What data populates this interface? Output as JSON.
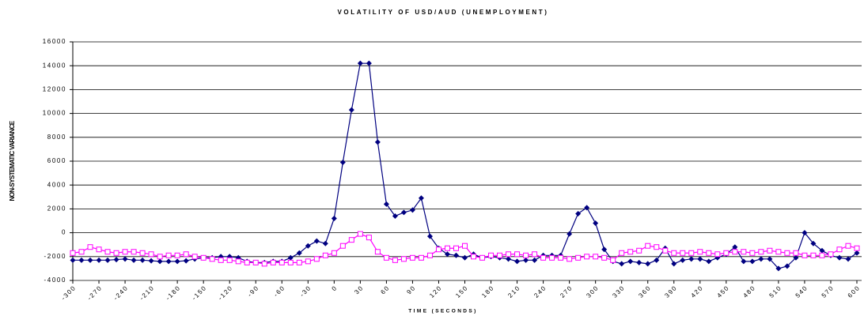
{
  "chart_data": {
    "type": "line",
    "title": "VOLATILITY OF USD/AUD (UNEMPLOYMENT)",
    "x_label": "TIME (SECONDS)",
    "y_label": "NON-SYSTEMATIC VARIANCE",
    "x": [
      -300,
      -290,
      -280,
      -270,
      -260,
      -250,
      -240,
      -230,
      -220,
      -210,
      -200,
      -190,
      -180,
      -170,
      -160,
      -150,
      -140,
      -130,
      -120,
      -110,
      -100,
      -90,
      -80,
      -70,
      -60,
      -50,
      -40,
      -30,
      -20,
      -10,
      0,
      10,
      20,
      30,
      40,
      50,
      60,
      70,
      80,
      90,
      100,
      110,
      120,
      130,
      140,
      150,
      160,
      170,
      180,
      190,
      200,
      210,
      220,
      230,
      240,
      250,
      260,
      270,
      280,
      290,
      300,
      310,
      320,
      330,
      340,
      350,
      360,
      370,
      380,
      390,
      400,
      410,
      420,
      430,
      440,
      450,
      460,
      470,
      480,
      490,
      500,
      510,
      520,
      530,
      540,
      550,
      560,
      570,
      580,
      590,
      600
    ],
    "series": [
      {
        "color": "#000080",
        "marker": "diamond",
        "values": [
          -2300,
          -2300,
          -2300,
          -2300,
          -2300,
          -2250,
          -2200,
          -2300,
          -2300,
          -2350,
          -2400,
          -2400,
          -2400,
          -2350,
          -2200,
          -2100,
          -2100,
          -2000,
          -2000,
          -2100,
          -2400,
          -2500,
          -2500,
          -2400,
          -2400,
          -2100,
          -1700,
          -1100,
          -700,
          -900,
          1200,
          5900,
          10300,
          14200,
          14200,
          7600,
          2400,
          1400,
          1700,
          1900,
          2900,
          -300,
          -1300,
          -1800,
          -1900,
          -2100,
          -1800,
          -2100,
          -2000,
          -2100,
          -2200,
          -2400,
          -2300,
          -2300,
          -1900,
          -1900,
          -1900,
          -100,
          1600,
          2100,
          800,
          -1400,
          -2400,
          -2600,
          -2400,
          -2500,
          -2600,
          -2300,
          -1300,
          -2600,
          -2300,
          -2200,
          -2200,
          -2400,
          -2100,
          -1800,
          -1200,
          -2400,
          -2400,
          -2200,
          -2200,
          -3000,
          -2800,
          -2100,
          0,
          -900,
          -1500,
          -1900,
          -2100,
          -2200,
          -1700
        ]
      },
      {
        "color": "#ff00ff",
        "marker": "square",
        "values": [
          -1700,
          -1600,
          -1200,
          -1400,
          -1600,
          -1700,
          -1600,
          -1600,
          -1700,
          -1800,
          -2000,
          -1900,
          -1900,
          -1800,
          -2000,
          -2100,
          -2200,
          -2300,
          -2300,
          -2400,
          -2500,
          -2500,
          -2600,
          -2500,
          -2500,
          -2500,
          -2500,
          -2400,
          -2200,
          -1900,
          -1700,
          -1100,
          -600,
          -100,
          -400,
          -1600,
          -2100,
          -2300,
          -2200,
          -2100,
          -2100,
          -1900,
          -1400,
          -1300,
          -1300,
          -1100,
          -2000,
          -2100,
          -1900,
          -1900,
          -1800,
          -1800,
          -1900,
          -1800,
          -2100,
          -2100,
          -2100,
          -2200,
          -2100,
          -2000,
          -2000,
          -2100,
          -2300,
          -1700,
          -1600,
          -1500,
          -1100,
          -1200,
          -1500,
          -1700,
          -1700,
          -1700,
          -1600,
          -1700,
          -1800,
          -1700,
          -1600,
          -1600,
          -1700,
          -1600,
          -1500,
          -1600,
          -1700,
          -1700,
          -1900,
          -1900,
          -1900,
          -1800,
          -1400,
          -1100,
          -1300
        ]
      }
    ],
    "xlim": [
      -300,
      600
    ],
    "xticks": [
      -300,
      -270,
      -240,
      -210,
      -180,
      -150,
      -120,
      -90,
      -60,
      -30,
      0,
      30,
      60,
      90,
      120,
      150,
      180,
      210,
      240,
      270,
      300,
      330,
      360,
      390,
      420,
      450,
      480,
      510,
      540,
      570,
      600
    ],
    "ylim": [
      -4000,
      16000
    ],
    "yticks": [
      -4000,
      -2000,
      0,
      2000,
      4000,
      6000,
      8000,
      10000,
      12000,
      14000,
      16000
    ],
    "grid": true
  }
}
